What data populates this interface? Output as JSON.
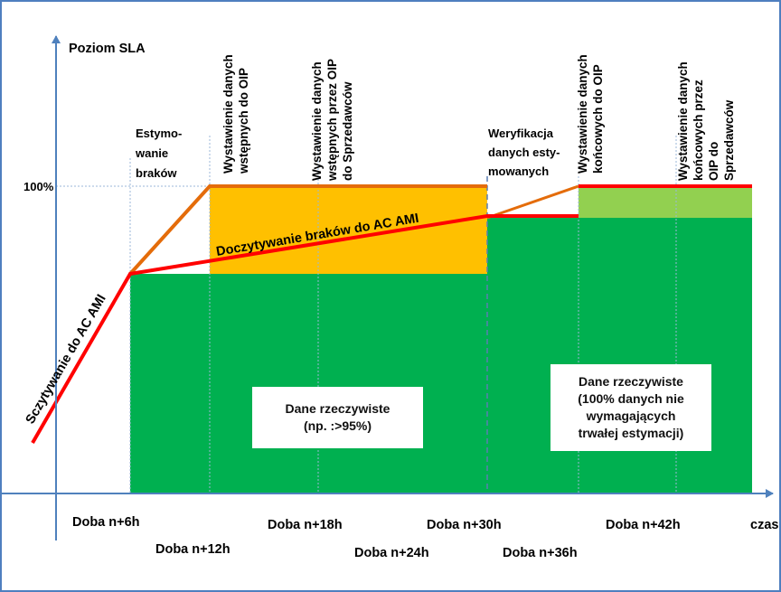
{
  "axis": {
    "y_label": "Poziom SLA",
    "x_label": "czas",
    "y_tick": "100%",
    "x_ticks_row1": [
      "Doba n+6h",
      "Doba n+18h",
      "Doba n+30h",
      "Doba n+42h"
    ],
    "x_ticks_row2": [
      "Doba n+12h",
      "Doba n+24h",
      "Doba n+36h"
    ]
  },
  "phases": {
    "estymowanie": [
      "Estymo-",
      "wanie",
      "braków"
    ],
    "weryfikacja": [
      "Weryfikacja",
      "danych esty-",
      "mowanych"
    ]
  },
  "columns": {
    "col1": [
      "Wystawienie danych",
      "wstępnych do OIP"
    ],
    "col2": [
      "Wystawienie danych",
      "wstępnych przez OIP",
      "do Sprzedawców"
    ],
    "col3": [
      "Wystawienie danych",
      "końcowych do OIP"
    ],
    "col4": [
      "Wystawienie danych",
      "końcowych przez",
      "OIP do",
      "Sprzedawców"
    ]
  },
  "lines": {
    "sczytywanie": "Sczytywanie do AC AMI",
    "doczytywanie": "Doczytywanie  braków do AC AMI"
  },
  "boxes": {
    "box1": [
      "Dane rzeczywiste",
      "(np. :>95%)"
    ],
    "box2": [
      "Dane rzeczywiste",
      "(100% danych nie",
      "wymagających",
      "trwałej estymacji)"
    ]
  },
  "colors": {
    "green": "#00b050",
    "orange_fill": "#ffc000",
    "light_green": "#92d050",
    "red_line": "#ff0000",
    "orange_line": "#e46c0a",
    "axis": "#4f81bd"
  }
}
